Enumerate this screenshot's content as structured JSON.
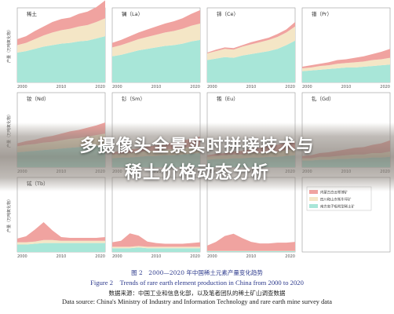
{
  "overlay": {
    "line1": "多摄像头全景实时拼接技术与",
    "line2": "稀土价格动态分析"
  },
  "caption": {
    "cn": "图 2　2000—2020 年中国稀土元素产量变化趋势",
    "en": "Figure 2　Trends of rare earth element production in China from 2000 to 2020",
    "source_cn": "数据来源：中国工业和信息化部，以及笔者团队的稀土矿山调查数据",
    "source_en": "Data source: China's Ministry of Industry and Information Technology and rare earth mine survey data"
  },
  "colors": {
    "southern_ionic": "#a8e6d8",
    "sichuan_shandong": "#f4e6c6",
    "inner_mongolia": "#f0a3a0"
  },
  "chart_data": {
    "type": "area",
    "stacked": true,
    "x_ticks": [
      2000,
      2010,
      2020
    ],
    "y_label": "产量（万吨氧化物）",
    "grid": false,
    "legend": {
      "placement": "bottom-right panel",
      "entries": [
        {
          "key": "inner_mongolia",
          "label": "内蒙古白云鄂博矿"
        },
        {
          "key": "sichuan_shandong",
          "label": "四川和山东牦牛坪矿"
        },
        {
          "key": "southern_ionic",
          "label": "南方离子吸附型稀土矿"
        }
      ]
    },
    "panels": [
      {
        "label": "稀土",
        "x": [
          2000,
          2002,
          2004,
          2006,
          2008,
          2010,
          2012,
          2014,
          2016,
          2018,
          2020
        ],
        "series": [
          {
            "key": "southern_ionic",
            "values": [
              4.0,
              4.2,
              4.5,
              4.8,
              5.0,
              5.2,
              5.3,
              5.5,
              5.6,
              5.9,
              6.2
            ]
          },
          {
            "key": "sichuan_shandong",
            "values": [
              1.0,
              1.1,
              1.3,
              1.5,
              1.7,
              1.8,
              1.9,
              2.0,
              2.1,
              2.2,
              2.4
            ]
          },
          {
            "key": "inner_mongolia",
            "values": [
              0.8,
              0.9,
              1.1,
              1.2,
              1.4,
              1.5,
              1.5,
              1.7,
              1.8,
              2.0,
              2.4
            ]
          }
        ]
      },
      {
        "label": "镧（La）",
        "x": [
          2000,
          2002,
          2004,
          2006,
          2008,
          2010,
          2012,
          2014,
          2016,
          2018,
          2020
        ],
        "series": [
          {
            "key": "southern_ionic",
            "values": [
              3.5,
              3.7,
              4.0,
              4.3,
              4.5,
              4.7,
              4.9,
              5.0,
              5.2,
              5.5,
              5.7
            ]
          },
          {
            "key": "sichuan_shandong",
            "values": [
              1.2,
              1.3,
              1.4,
              1.5,
              1.6,
              1.7,
              1.8,
              1.9,
              2.0,
              2.1,
              2.2
            ]
          },
          {
            "key": "inner_mongolia",
            "values": [
              0.6,
              0.7,
              0.8,
              0.9,
              1.0,
              1.1,
              1.2,
              1.3,
              1.4,
              1.6,
              1.8
            ]
          }
        ]
      },
      {
        "label": "铈（Ce）",
        "x": [
          2000,
          2002,
          2004,
          2006,
          2008,
          2010,
          2012,
          2014,
          2016,
          2018,
          2020
        ],
        "series": [
          {
            "key": "southern_ionic",
            "values": [
              3.0,
              3.2,
              3.4,
              3.3,
              3.6,
              3.8,
              4.0,
              4.2,
              4.5,
              5.0,
              5.6
            ]
          },
          {
            "key": "sichuan_shandong",
            "values": [
              0.9,
              1.0,
              1.1,
              1.1,
              1.2,
              1.3,
              1.4,
              1.5,
              1.6,
              1.7,
              1.9
            ]
          },
          {
            "key": "inner_mongolia",
            "values": [
              0.1,
              0.2,
              0.2,
              0.2,
              0.2,
              0.3,
              0.3,
              0.3,
              0.4,
              0.4,
              0.6
            ]
          }
        ]
      },
      {
        "label": "镨（Pr）",
        "x": [
          2000,
          2002,
          2004,
          2006,
          2008,
          2010,
          2012,
          2014,
          2016,
          2018,
          2020
        ],
        "series": [
          {
            "key": "southern_ionic",
            "values": [
              1.5,
              1.6,
              1.7,
              1.8,
              1.9,
              2.0,
              2.0,
              2.1,
              2.2,
              2.3,
              2.4
            ]
          },
          {
            "key": "sichuan_shandong",
            "values": [
              0.4,
              0.4,
              0.5,
              0.5,
              0.6,
              0.6,
              0.7,
              0.7,
              0.8,
              0.8,
              0.9
            ]
          },
          {
            "key": "inner_mongolia",
            "values": [
              0.2,
              0.3,
              0.3,
              0.4,
              0.5,
              0.5,
              0.6,
              0.7,
              0.8,
              1.0,
              1.2
            ]
          }
        ]
      },
      {
        "label": "钕（Nd）",
        "x": [
          2000,
          2002,
          2004,
          2006,
          2008,
          2010,
          2012,
          2014,
          2016,
          2018,
          2020
        ],
        "series": [
          {
            "key": "southern_ionic",
            "values": [
              2.0,
              2.1,
              2.2,
              2.3,
              2.4,
              2.5,
              2.6,
              2.7,
              2.8,
              2.9,
              3.0
            ]
          },
          {
            "key": "sichuan_shandong",
            "values": [
              0.8,
              0.9,
              0.9,
              1.0,
              1.0,
              1.1,
              1.2,
              1.2,
              1.3,
              1.4,
              1.5
            ]
          },
          {
            "key": "inner_mongolia",
            "values": [
              0.4,
              0.5,
              0.6,
              0.7,
              0.8,
              0.9,
              1.0,
              1.1,
              1.2,
              1.3,
              1.5
            ]
          }
        ]
      },
      {
        "label": "钐（Sm）",
        "x": [
          2000,
          2002,
          2004,
          2006,
          2008,
          2010,
          2012,
          2014,
          2016,
          2018,
          2020
        ],
        "series": [
          {
            "key": "southern_ionic",
            "values": [
              1.2,
              1.3,
              1.3,
              1.4,
              1.5,
              1.5,
              1.6,
              1.6,
              1.7,
              1.8,
              1.9
            ]
          },
          {
            "key": "sichuan_shandong",
            "values": [
              0.5,
              0.5,
              0.6,
              0.6,
              0.7,
              0.7,
              0.8,
              0.8,
              0.9,
              0.9,
              1.0
            ]
          },
          {
            "key": "inner_mongolia",
            "values": [
              0.3,
              0.4,
              0.5,
              0.5,
              0.6,
              0.7,
              0.8,
              0.9,
              1.0,
              1.1,
              1.2
            ]
          }
        ]
      },
      {
        "label": "铕（Eu）",
        "x": [
          2000,
          2002,
          2004,
          2006,
          2008,
          2010,
          2012,
          2014,
          2016,
          2018,
          2020
        ],
        "series": [
          {
            "key": "southern_ionic",
            "values": [
              1.0,
              1.1,
              1.1,
              1.2,
              1.2,
              1.3,
              1.3,
              1.4,
              1.4,
              1.5,
              1.6
            ]
          },
          {
            "key": "sichuan_shandong",
            "values": [
              0.4,
              0.4,
              0.5,
              0.5,
              0.5,
              0.6,
              0.6,
              0.7,
              0.7,
              0.8,
              0.8
            ]
          },
          {
            "key": "inner_mongolia",
            "values": [
              0.2,
              0.3,
              0.3,
              0.4,
              0.5,
              0.6,
              0.7,
              0.8,
              0.9,
              1.0,
              1.1
            ]
          }
        ]
      },
      {
        "label": "钆（Gd）",
        "x": [
          2000,
          2002,
          2004,
          2006,
          2008,
          2010,
          2012,
          2014,
          2016,
          2018,
          2020
        ],
        "series": [
          {
            "key": "southern_ionic",
            "values": [
              0.9,
              0.9,
              1.0,
              1.0,
              1.1,
              1.1,
              1.2,
              1.2,
              1.3,
              1.3,
              1.4
            ]
          },
          {
            "key": "sichuan_shandong",
            "values": [
              0.3,
              0.3,
              0.4,
              0.4,
              0.4,
              0.5,
              0.5,
              0.5,
              0.6,
              0.6,
              0.7
            ]
          },
          {
            "key": "inner_mongolia",
            "values": [
              0.3,
              0.4,
              0.5,
              0.6,
              0.7,
              0.8,
              0.9,
              1.0,
              1.1,
              1.3,
              1.5
            ]
          }
        ]
      },
      {
        "label": "铽（Tb）",
        "x": [
          2000,
          2002,
          2004,
          2006,
          2008,
          2010,
          2012,
          2014,
          2016,
          2018,
          2020
        ],
        "series": [
          {
            "key": "southern_ionic",
            "values": [
              1.0,
              1.0,
              1.1,
              1.2,
              1.2,
              1.2,
              1.2,
              1.2,
              1.2,
              1.2,
              1.2
            ]
          },
          {
            "key": "sichuan_shandong",
            "values": [
              0.3,
              0.3,
              0.3,
              0.4,
              0.4,
              0.3,
              0.3,
              0.3,
              0.3,
              0.3,
              0.3
            ]
          },
          {
            "key": "inner_mongolia",
            "values": [
              0.5,
              0.8,
              1.6,
              2.4,
              1.3,
              0.5,
              0.4,
              0.4,
              0.4,
              0.4,
              0.5
            ]
          }
        ]
      },
      {
        "label": "",
        "x": [
          2000,
          2002,
          2004,
          2006,
          2008,
          2010,
          2012,
          2014,
          2016,
          2018,
          2020
        ],
        "series": [
          {
            "key": "southern_ionic",
            "values": [
              0.5,
              0.5,
              0.5,
              0.6,
              0.5,
              0.5,
              0.5,
              0.5,
              0.5,
              0.5,
              0.5
            ]
          },
          {
            "key": "sichuan_shandong",
            "values": [
              0.2,
              0.2,
              0.2,
              0.2,
              0.2,
              0.2,
              0.2,
              0.2,
              0.2,
              0.2,
              0.2
            ]
          },
          {
            "key": "inner_mongolia",
            "values": [
              0.6,
              0.8,
              1.8,
              1.4,
              0.7,
              0.5,
              0.4,
              0.4,
              0.4,
              0.5,
              0.6
            ]
          }
        ]
      },
      {
        "label": "",
        "x": [
          2000,
          2002,
          2004,
          2006,
          2008,
          2010,
          2012,
          2014,
          2016,
          2018,
          2020
        ],
        "series": [
          {
            "key": "southern_ionic",
            "values": [
              0.1,
              0.1,
              0.1,
              0.1,
              0.1,
              0.1,
              0.1,
              0.1,
              0.1,
              0.1,
              0.1
            ]
          },
          {
            "key": "sichuan_shandong",
            "values": [
              0.05,
              0.05,
              0.05,
              0.05,
              0.05,
              0.05,
              0.05,
              0.05,
              0.05,
              0.05,
              0.05
            ]
          },
          {
            "key": "inner_mongolia",
            "values": [
              0.7,
              1.2,
              2.0,
              2.3,
              1.7,
              1.2,
              1.0,
              1.0,
              1.1,
              1.1,
              1.2
            ]
          }
        ]
      }
    ]
  }
}
